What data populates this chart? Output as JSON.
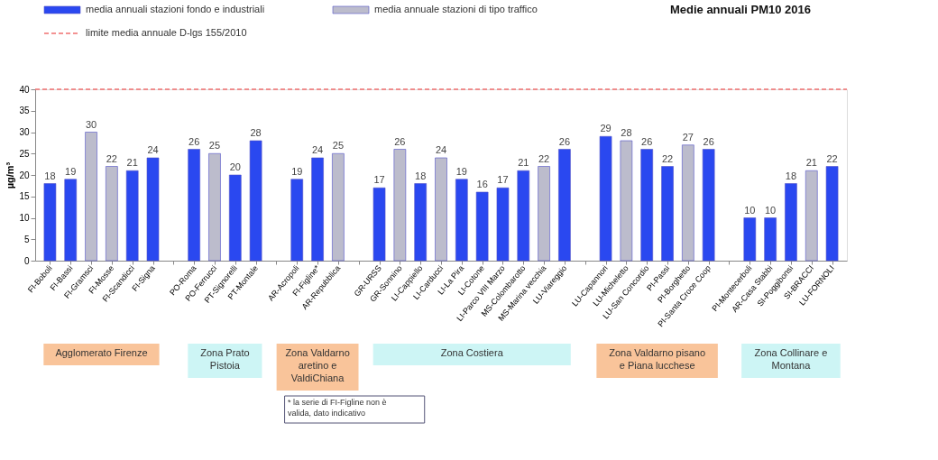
{
  "chart_data": {
    "type": "bar",
    "title": "Medie annuali PM10 2016",
    "ylabel": "µg/m³",
    "categories": [
      "FI-Boboli",
      "FI-Bassi",
      "FI-Gramsci",
      "FI-Mosse",
      "FI-Scandicci",
      "FI-Signa",
      null,
      "PO-Roma",
      "PO-Ferrucci",
      "PT-Signorelli",
      "PT-Montale",
      null,
      "AR-Acropoli",
      "FI-Figline*",
      "AR-Repubblica",
      null,
      "GR-URSS",
      "GR-Sonnino",
      "LI-Cappiello",
      "LI-Carducci",
      "LI-La Pira",
      "LI-Cotone",
      "LI-Parco VIII Marzo",
      "MS-Colombarotto",
      "MS-Marina vecchia",
      "LU-Viareggio",
      null,
      "LU-Capannori",
      "LU-Micheletto",
      "LU-San Concordio",
      "PI-Passi",
      "PI-Borghetto",
      "PI-Santa Croce Coop",
      null,
      "PI-Montecerboli",
      "AR-Casa Stabbi",
      "SI-Poggibonsi",
      "SI-BRACCI",
      "LU-FORNOLI"
    ],
    "series": [
      {
        "name": "media annuali stazioni fondo e industriali",
        "color": "#2a48f0",
        "values": [
          18,
          19,
          null,
          null,
          21,
          24,
          null,
          26,
          null,
          20,
          28,
          null,
          19,
          24,
          null,
          null,
          17,
          null,
          18,
          null,
          19,
          16,
          17,
          21,
          null,
          26,
          null,
          29,
          null,
          26,
          22,
          null,
          26,
          null,
          10,
          10,
          18,
          null,
          22
        ]
      },
      {
        "name": "media annuale stazioni di tipo traffico",
        "color": "#bcbccc",
        "values": [
          null,
          null,
          30,
          22,
          null,
          null,
          null,
          null,
          25,
          null,
          null,
          null,
          null,
          null,
          25,
          null,
          null,
          26,
          null,
          24,
          null,
          null,
          null,
          null,
          22,
          null,
          null,
          null,
          28,
          null,
          null,
          27,
          null,
          null,
          null,
          null,
          null,
          21,
          null
        ]
      }
    ],
    "ylim": [
      0,
      40
    ],
    "yticks": [
      0,
      5,
      10,
      15,
      20,
      25,
      30,
      35,
      40
    ],
    "ref_lines": [
      {
        "axis": "y",
        "value": 40,
        "label": "limite media annuale D-lgs 155/2010",
        "color": "#f07070",
        "line_style": "dashed"
      }
    ],
    "data_labels": true,
    "legend": "top left",
    "annotations": [
      "Agglomerato Firenze",
      "Zona Prato Pistoia",
      "Zona Valdarno aretino e ValdiChiana",
      "Zona Costiera",
      "Zona Valdarno pisano e Piana lucchese",
      "Zona Collinare e Montana",
      "* la serie di FI-Figline non è valida, dato indicativo"
    ]
  }
}
